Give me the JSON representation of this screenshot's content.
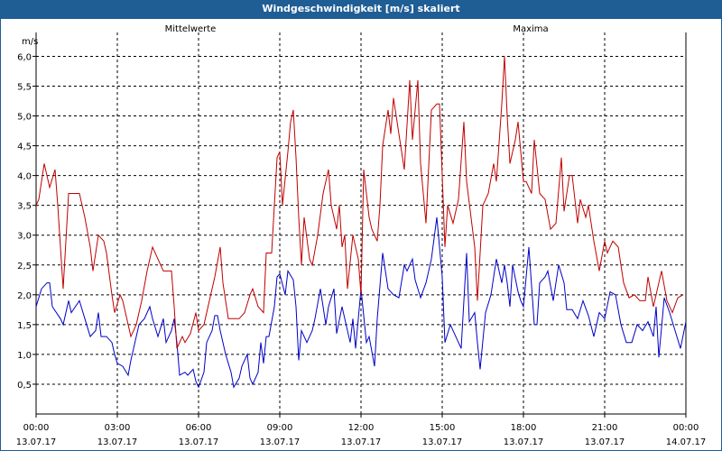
{
  "window": {
    "title": "Windgeschwindigkeit [m/s] skaliert"
  },
  "chart_data": {
    "type": "line",
    "ylabel": "m/s",
    "ylim": [
      0,
      6.4
    ],
    "yticks": [
      0.5,
      1.0,
      1.5,
      2.0,
      2.5,
      3.0,
      3.5,
      4.0,
      4.5,
      5.0,
      5.5,
      6.0
    ],
    "ytick_labels": [
      "0,5",
      "1,0",
      "1,5",
      "2,0",
      "2,5",
      "3,0",
      "3,5",
      "4,0",
      "4,5",
      "5,0",
      "5,5",
      "6,0"
    ],
    "xlim_hours": [
      0,
      24
    ],
    "xticks": [
      {
        "h": 0,
        "time": "00:00",
        "date": "13.07.17"
      },
      {
        "h": 3,
        "time": "03:00",
        "date": "13.07.17"
      },
      {
        "h": 6,
        "time": "06:00",
        "date": "13.07.17"
      },
      {
        "h": 9,
        "time": "09:00",
        "date": "13.07.17"
      },
      {
        "h": 12,
        "time": "12:00",
        "date": "13.07.17"
      },
      {
        "h": 15,
        "time": "15:00",
        "date": "13.07.17"
      },
      {
        "h": 18,
        "time": "18:00",
        "date": "13.07.17"
      },
      {
        "h": 21,
        "time": "21:00",
        "date": "13.07.17"
      },
      {
        "h": 24,
        "time": "00:00",
        "date": "14.07.17"
      }
    ],
    "grid": true,
    "series": [
      {
        "name": "Mittelwerte",
        "color": "#0000c8",
        "points": [
          [
            0.0,
            1.8
          ],
          [
            0.2,
            2.1
          ],
          [
            0.4,
            2.2
          ],
          [
            0.5,
            2.2
          ],
          [
            0.6,
            1.8
          ],
          [
            0.9,
            1.6
          ],
          [
            1.0,
            1.5
          ],
          [
            1.2,
            1.9
          ],
          [
            1.3,
            1.7
          ],
          [
            1.6,
            1.9
          ],
          [
            1.8,
            1.6
          ],
          [
            2.0,
            1.3
          ],
          [
            2.2,
            1.4
          ],
          [
            2.3,
            1.7
          ],
          [
            2.4,
            1.3
          ],
          [
            2.6,
            1.3
          ],
          [
            2.8,
            1.2
          ],
          [
            2.9,
            1.0
          ],
          [
            3.0,
            0.85
          ],
          [
            3.2,
            0.8
          ],
          [
            3.4,
            0.65
          ],
          [
            3.5,
            0.9
          ],
          [
            3.6,
            1.1
          ],
          [
            3.8,
            1.5
          ],
          [
            4.0,
            1.6
          ],
          [
            4.2,
            1.8
          ],
          [
            4.3,
            1.6
          ],
          [
            4.5,
            1.3
          ],
          [
            4.7,
            1.6
          ],
          [
            4.8,
            1.2
          ],
          [
            5.0,
            1.4
          ],
          [
            5.1,
            1.6
          ],
          [
            5.2,
            1.2
          ],
          [
            5.3,
            0.65
          ],
          [
            5.5,
            0.7
          ],
          [
            5.6,
            0.65
          ],
          [
            5.8,
            0.75
          ],
          [
            5.9,
            0.55
          ],
          [
            6.0,
            0.45
          ],
          [
            6.2,
            0.7
          ],
          [
            6.3,
            1.2
          ],
          [
            6.5,
            1.4
          ],
          [
            6.6,
            1.65
          ],
          [
            6.7,
            1.65
          ],
          [
            6.8,
            1.4
          ],
          [
            7.0,
            1.0
          ],
          [
            7.2,
            0.7
          ],
          [
            7.3,
            0.45
          ],
          [
            7.5,
            0.6
          ],
          [
            7.6,
            0.8
          ],
          [
            7.8,
            1.0
          ],
          [
            7.9,
            0.6
          ],
          [
            8.0,
            0.5
          ],
          [
            8.2,
            0.7
          ],
          [
            8.3,
            1.2
          ],
          [
            8.4,
            0.85
          ],
          [
            8.5,
            1.3
          ],
          [
            8.6,
            1.3
          ],
          [
            8.8,
            1.8
          ],
          [
            8.9,
            2.3
          ],
          [
            9.0,
            2.35
          ],
          [
            9.2,
            2.0
          ],
          [
            9.3,
            2.4
          ],
          [
            9.5,
            2.25
          ],
          [
            9.6,
            1.8
          ],
          [
            9.7,
            0.9
          ],
          [
            9.8,
            1.4
          ],
          [
            10.0,
            1.2
          ],
          [
            10.2,
            1.4
          ],
          [
            10.3,
            1.6
          ],
          [
            10.5,
            2.1
          ],
          [
            10.7,
            1.5
          ],
          [
            10.8,
            1.8
          ],
          [
            11.0,
            2.1
          ],
          [
            11.1,
            1.35
          ],
          [
            11.3,
            1.8
          ],
          [
            11.4,
            1.6
          ],
          [
            11.6,
            1.2
          ],
          [
            11.7,
            1.6
          ],
          [
            11.8,
            1.1
          ],
          [
            12.0,
            2.1
          ],
          [
            12.2,
            1.2
          ],
          [
            12.3,
            1.3
          ],
          [
            12.5,
            0.8
          ],
          [
            12.6,
            1.6
          ],
          [
            12.8,
            2.7
          ],
          [
            13.0,
            2.1
          ],
          [
            13.2,
            2.0
          ],
          [
            13.4,
            1.95
          ],
          [
            13.6,
            2.5
          ],
          [
            13.7,
            2.4
          ],
          [
            13.9,
            2.6
          ],
          [
            14.0,
            2.25
          ],
          [
            14.2,
            1.95
          ],
          [
            14.4,
            2.2
          ],
          [
            14.6,
            2.6
          ],
          [
            14.8,
            3.3
          ],
          [
            15.0,
            2.3
          ],
          [
            15.1,
            1.2
          ],
          [
            15.3,
            1.5
          ],
          [
            15.5,
            1.3
          ],
          [
            15.7,
            1.1
          ],
          [
            15.9,
            2.7
          ],
          [
            16.0,
            1.55
          ],
          [
            16.2,
            1.7
          ],
          [
            16.3,
            1.2
          ],
          [
            16.4,
            0.75
          ],
          [
            16.6,
            1.7
          ],
          [
            16.8,
            2.0
          ],
          [
            17.0,
            2.6
          ],
          [
            17.2,
            2.2
          ],
          [
            17.3,
            2.5
          ],
          [
            17.4,
            2.2
          ],
          [
            17.5,
            1.8
          ],
          [
            17.6,
            2.5
          ],
          [
            17.8,
            2.05
          ],
          [
            17.9,
            1.9
          ],
          [
            18.0,
            1.8
          ],
          [
            18.2,
            2.8
          ],
          [
            18.4,
            1.5
          ],
          [
            18.5,
            1.5
          ],
          [
            18.6,
            2.2
          ],
          [
            18.8,
            2.3
          ],
          [
            18.9,
            2.4
          ],
          [
            19.1,
            1.9
          ],
          [
            19.3,
            2.5
          ],
          [
            19.5,
            2.2
          ],
          [
            19.6,
            1.75
          ],
          [
            19.8,
            1.75
          ],
          [
            20.0,
            1.6
          ],
          [
            20.2,
            1.9
          ],
          [
            20.4,
            1.65
          ],
          [
            20.6,
            1.3
          ],
          [
            20.8,
            1.7
          ],
          [
            21.0,
            1.6
          ],
          [
            21.2,
            2.05
          ],
          [
            21.4,
            2.0
          ],
          [
            21.6,
            1.5
          ],
          [
            21.8,
            1.2
          ],
          [
            22.0,
            1.2
          ],
          [
            22.2,
            1.5
          ],
          [
            22.4,
            1.4
          ],
          [
            22.6,
            1.55
          ],
          [
            22.8,
            1.3
          ],
          [
            22.9,
            1.8
          ],
          [
            23.0,
            0.95
          ],
          [
            23.2,
            1.95
          ],
          [
            23.4,
            1.7
          ],
          [
            23.6,
            1.4
          ],
          [
            23.8,
            1.1
          ],
          [
            24.0,
            1.55
          ]
        ]
      },
      {
        "name": "Maxima",
        "color": "#c00000",
        "points": [
          [
            0.0,
            3.5
          ],
          [
            0.1,
            3.6
          ],
          [
            0.3,
            4.2
          ],
          [
            0.5,
            3.8
          ],
          [
            0.7,
            4.1
          ],
          [
            0.8,
            3.5
          ],
          [
            1.0,
            2.1
          ],
          [
            1.2,
            3.7
          ],
          [
            1.4,
            3.7
          ],
          [
            1.6,
            3.7
          ],
          [
            1.8,
            3.3
          ],
          [
            2.0,
            2.8
          ],
          [
            2.1,
            2.4
          ],
          [
            2.3,
            3.0
          ],
          [
            2.5,
            2.9
          ],
          [
            2.6,
            2.7
          ],
          [
            2.8,
            2.0
          ],
          [
            2.9,
            1.7
          ],
          [
            3.1,
            2.0
          ],
          [
            3.2,
            1.9
          ],
          [
            3.4,
            1.5
          ],
          [
            3.5,
            1.3
          ],
          [
            3.7,
            1.5
          ],
          [
            3.9,
            1.9
          ],
          [
            4.1,
            2.4
          ],
          [
            4.3,
            2.8
          ],
          [
            4.5,
            2.6
          ],
          [
            4.7,
            2.4
          ],
          [
            4.9,
            2.4
          ],
          [
            5.0,
            2.4
          ],
          [
            5.1,
            1.8
          ],
          [
            5.2,
            1.1
          ],
          [
            5.4,
            1.3
          ],
          [
            5.5,
            1.2
          ],
          [
            5.7,
            1.35
          ],
          [
            5.9,
            1.7
          ],
          [
            6.0,
            1.4
          ],
          [
            6.2,
            1.5
          ],
          [
            6.4,
            1.9
          ],
          [
            6.6,
            2.3
          ],
          [
            6.8,
            2.8
          ],
          [
            6.9,
            2.2
          ],
          [
            7.1,
            1.6
          ],
          [
            7.3,
            1.6
          ],
          [
            7.5,
            1.6
          ],
          [
            7.7,
            1.7
          ],
          [
            7.9,
            2.0
          ],
          [
            8.0,
            2.1
          ],
          [
            8.2,
            1.8
          ],
          [
            8.4,
            1.7
          ],
          [
            8.5,
            2.7
          ],
          [
            8.7,
            2.7
          ],
          [
            8.8,
            3.5
          ],
          [
            8.9,
            4.3
          ],
          [
            9.0,
            4.4
          ],
          [
            9.1,
            3.5
          ],
          [
            9.3,
            4.4
          ],
          [
            9.4,
            4.9
          ],
          [
            9.5,
            5.1
          ],
          [
            9.6,
            4.3
          ],
          [
            9.7,
            3.3
          ],
          [
            9.8,
            2.5
          ],
          [
            9.9,
            3.3
          ],
          [
            10.1,
            2.6
          ],
          [
            10.2,
            2.5
          ],
          [
            10.4,
            3.0
          ],
          [
            10.6,
            3.7
          ],
          [
            10.8,
            4.1
          ],
          [
            10.9,
            3.5
          ],
          [
            11.1,
            3.1
          ],
          [
            11.2,
            3.5
          ],
          [
            11.3,
            2.8
          ],
          [
            11.4,
            3.0
          ],
          [
            11.5,
            2.1
          ],
          [
            11.7,
            3.0
          ],
          [
            11.9,
            2.6
          ],
          [
            12.0,
            2.0
          ],
          [
            12.1,
            4.1
          ],
          [
            12.3,
            3.3
          ],
          [
            12.4,
            3.1
          ],
          [
            12.6,
            2.9
          ],
          [
            12.7,
            3.5
          ],
          [
            12.8,
            4.5
          ],
          [
            13.0,
            5.1
          ],
          [
            13.1,
            4.7
          ],
          [
            13.2,
            5.3
          ],
          [
            13.4,
            4.7
          ],
          [
            13.6,
            4.1
          ],
          [
            13.8,
            5.6
          ],
          [
            13.9,
            4.6
          ],
          [
            14.1,
            5.6
          ],
          [
            14.2,
            4.2
          ],
          [
            14.4,
            3.2
          ],
          [
            14.6,
            5.1
          ],
          [
            14.8,
            5.2
          ],
          [
            14.9,
            5.2
          ],
          [
            15.1,
            2.8
          ],
          [
            15.2,
            3.5
          ],
          [
            15.4,
            3.2
          ],
          [
            15.6,
            3.6
          ],
          [
            15.8,
            4.9
          ],
          [
            15.9,
            3.9
          ],
          [
            16.2,
            2.8
          ],
          [
            16.3,
            1.9
          ],
          [
            16.5,
            3.5
          ],
          [
            16.7,
            3.7
          ],
          [
            16.9,
            4.2
          ],
          [
            17.0,
            3.9
          ],
          [
            17.2,
            5.2
          ],
          [
            17.3,
            6.0
          ],
          [
            17.4,
            5.0
          ],
          [
            17.5,
            4.2
          ],
          [
            17.7,
            4.6
          ],
          [
            17.8,
            4.9
          ],
          [
            18.0,
            3.9
          ],
          [
            18.1,
            3.9
          ],
          [
            18.3,
            3.7
          ],
          [
            18.4,
            4.6
          ],
          [
            18.6,
            3.7
          ],
          [
            18.8,
            3.6
          ],
          [
            19.0,
            3.1
          ],
          [
            19.2,
            3.2
          ],
          [
            19.4,
            4.3
          ],
          [
            19.5,
            3.4
          ],
          [
            19.7,
            4.0
          ],
          [
            19.8,
            4.0
          ],
          [
            20.0,
            3.2
          ],
          [
            20.1,
            3.6
          ],
          [
            20.3,
            3.3
          ],
          [
            20.4,
            3.5
          ],
          [
            20.6,
            2.9
          ],
          [
            20.8,
            2.4
          ],
          [
            21.0,
            2.9
          ],
          [
            21.1,
            2.7
          ],
          [
            21.3,
            2.9
          ],
          [
            21.5,
            2.8
          ],
          [
            21.7,
            2.2
          ],
          [
            21.9,
            1.95
          ],
          [
            22.1,
            2.0
          ],
          [
            22.3,
            1.9
          ],
          [
            22.5,
            1.9
          ],
          [
            22.6,
            2.3
          ],
          [
            22.8,
            1.8
          ],
          [
            22.9,
            2.0
          ],
          [
            23.1,
            2.4
          ],
          [
            23.3,
            1.9
          ],
          [
            23.5,
            1.7
          ],
          [
            23.7,
            1.95
          ],
          [
            23.9,
            2.0
          ]
        ]
      }
    ]
  }
}
